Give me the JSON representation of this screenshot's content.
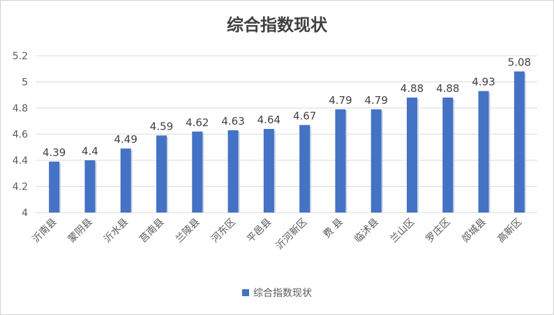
{
  "chart_data": {
    "type": "bar",
    "title": "综合指数现状",
    "categories": [
      "沂南县",
      "蒙阴县",
      "沂水县",
      "莒南县",
      "兰陵县",
      "河东区",
      "平邑县",
      "沂河新区",
      "费  县",
      "临沭县",
      "兰山区",
      "罗庄区",
      "郯城县",
      "高新区"
    ],
    "series": [
      {
        "name": "综合指数现状",
        "values": [
          4.39,
          4.4,
          4.49,
          4.59,
          4.62,
          4.63,
          4.64,
          4.67,
          4.79,
          4.79,
          4.88,
          4.88,
          4.93,
          5.08
        ],
        "labels": [
          "4.39",
          "4.4",
          "4.49",
          "4.59",
          "4.62",
          "4.63",
          "4.64",
          "4.67",
          "4.79",
          "4.79",
          "4.88",
          "4.88",
          "4.93",
          "5.08"
        ]
      }
    ],
    "ylim": [
      4,
      5.2
    ],
    "yticks": [
      "4",
      "4.2",
      "4.4",
      "4.6",
      "4.8",
      "5",
      "5.2"
    ],
    "grid": true,
    "legend": "bottom",
    "color": "#4472c4"
  }
}
